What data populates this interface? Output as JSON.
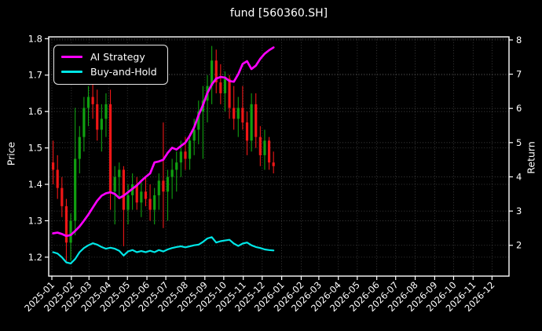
{
  "title": "fund [560360.SH]",
  "colors": {
    "background": "#000000",
    "text": "#ffffff",
    "grid": "#6e6e6e",
    "spine": "#ffffff",
    "candle_up": "#10a010",
    "candle_down": "#ef1616",
    "ai_strategy": "#ff00ff",
    "buy_and_hold": "#00e6e6"
  },
  "legend": {
    "items": [
      {
        "label": "AI Strategy",
        "color": "#ff00ff"
      },
      {
        "label": "Buy-and-Hold",
        "color": "#00e6e6"
      }
    ]
  },
  "axes": {
    "left": {
      "label": "Price",
      "ticks": [
        1.2,
        1.3,
        1.4,
        1.5,
        1.6,
        1.7,
        1.8
      ],
      "lim": [
        1.148,
        1.805
      ]
    },
    "right": {
      "label": "Return",
      "ticks": [
        2,
        3,
        4,
        5,
        6,
        7,
        8
      ],
      "lim": [
        1.1,
        8.09
      ]
    },
    "x": {
      "lim": [
        "2024-12-27",
        "2026-12-28"
      ],
      "tick_labels": [
        "2025-01",
        "2025-02",
        "2025-03",
        "2025-04",
        "2025-05",
        "2025-06",
        "2025-07",
        "2025-08",
        "2025-09",
        "2025-10",
        "2025-11",
        "2025-12",
        "2026-01",
        "2026-02",
        "2026-03",
        "2026-04",
        "2026-05",
        "2026-06",
        "2026-07",
        "2026-08",
        "2026-09",
        "2026-10",
        "2026-11",
        "2026-12"
      ]
    }
  },
  "chart_data": {
    "type": "candlestick+line",
    "title": "fund [560360.SH]",
    "xlabel": "",
    "ylabel_left": "Price",
    "ylabel_right": "Return",
    "grid": true,
    "legend_position": "upper left",
    "dates": [
      "2025-01-03",
      "2025-01-10",
      "2025-01-17",
      "2025-01-24",
      "2025-01-31",
      "2025-02-07",
      "2025-02-14",
      "2025-02-21",
      "2025-02-28",
      "2025-03-07",
      "2025-03-14",
      "2025-03-21",
      "2025-03-28",
      "2025-04-04",
      "2025-04-11",
      "2025-04-18",
      "2025-04-25",
      "2025-05-02",
      "2025-05-09",
      "2025-05-16",
      "2025-05-23",
      "2025-05-30",
      "2025-06-06",
      "2025-06-13",
      "2025-06-20",
      "2025-06-27",
      "2025-07-04",
      "2025-07-11",
      "2025-07-18",
      "2025-07-25",
      "2025-08-01",
      "2025-08-08",
      "2025-08-15",
      "2025-08-22",
      "2025-08-29",
      "2025-09-05",
      "2025-09-12",
      "2025-09-19",
      "2025-09-26",
      "2025-10-03",
      "2025-10-10",
      "2025-10-17",
      "2025-10-24",
      "2025-10-31",
      "2025-11-07",
      "2025-11-14",
      "2025-11-21",
      "2025-11-28",
      "2025-12-05",
      "2025-12-12",
      "2025-12-19"
    ],
    "candles": {
      "name": "fund price",
      "axis": "left",
      "open": [
        1.46,
        1.44,
        1.39,
        1.34,
        1.24,
        1.3,
        1.47,
        1.53,
        1.61,
        1.64,
        1.62,
        1.55,
        1.58,
        1.62,
        1.38,
        1.42,
        1.44,
        1.33,
        1.37,
        1.4,
        1.35,
        1.38,
        1.36,
        1.33,
        1.37,
        1.41,
        1.38,
        1.42,
        1.44,
        1.46,
        1.49,
        1.47,
        1.52,
        1.55,
        1.6,
        1.63,
        1.67,
        1.74,
        1.68,
        1.65,
        1.69,
        1.61,
        1.58,
        1.61,
        1.57,
        1.52,
        1.62,
        1.53,
        1.48,
        1.52,
        1.46
      ],
      "high": [
        1.52,
        1.48,
        1.42,
        1.36,
        1.32,
        1.61,
        1.56,
        1.64,
        1.67,
        1.68,
        1.66,
        1.62,
        1.65,
        1.66,
        1.45,
        1.46,
        1.45,
        1.4,
        1.43,
        1.42,
        1.41,
        1.42,
        1.4,
        1.39,
        1.43,
        1.57,
        1.44,
        1.47,
        1.49,
        1.52,
        1.53,
        1.54,
        1.58,
        1.63,
        1.67,
        1.7,
        1.78,
        1.77,
        1.73,
        1.71,
        1.7,
        1.67,
        1.64,
        1.67,
        1.6,
        1.65,
        1.65,
        1.56,
        1.55,
        1.53,
        1.49
      ],
      "low": [
        1.4,
        1.36,
        1.31,
        1.19,
        1.19,
        1.26,
        1.43,
        1.49,
        1.56,
        1.58,
        1.52,
        1.49,
        1.53,
        1.33,
        1.29,
        1.36,
        1.23,
        1.29,
        1.33,
        1.33,
        1.31,
        1.34,
        1.3,
        1.29,
        1.33,
        1.28,
        1.3,
        1.36,
        1.38,
        1.42,
        1.44,
        1.44,
        1.48,
        1.51,
        1.47,
        1.57,
        1.62,
        1.65,
        1.62,
        1.6,
        1.58,
        1.55,
        1.53,
        1.55,
        1.48,
        1.49,
        1.5,
        1.45,
        1.44,
        1.44,
        1.43
      ],
      "close": [
        1.44,
        1.39,
        1.34,
        1.24,
        1.3,
        1.47,
        1.53,
        1.61,
        1.64,
        1.62,
        1.55,
        1.58,
        1.62,
        1.38,
        1.42,
        1.44,
        1.33,
        1.37,
        1.4,
        1.35,
        1.38,
        1.36,
        1.33,
        1.37,
        1.41,
        1.38,
        1.42,
        1.44,
        1.46,
        1.49,
        1.47,
        1.52,
        1.55,
        1.6,
        1.63,
        1.67,
        1.74,
        1.68,
        1.65,
        1.69,
        1.61,
        1.58,
        1.61,
        1.57,
        1.52,
        1.62,
        1.53,
        1.48,
        1.52,
        1.46,
        1.45
      ]
    },
    "series": [
      {
        "name": "AI Strategy",
        "axis": "right",
        "color": "#ff00ff",
        "values": [
          2.35,
          2.37,
          2.33,
          2.27,
          2.3,
          2.42,
          2.55,
          2.72,
          2.9,
          3.1,
          3.3,
          3.45,
          3.52,
          3.55,
          3.5,
          3.38,
          3.45,
          3.55,
          3.65,
          3.75,
          3.88,
          4.0,
          4.1,
          4.42,
          4.45,
          4.5,
          4.7,
          4.85,
          4.8,
          4.9,
          5.0,
          5.2,
          5.45,
          5.8,
          6.1,
          6.45,
          6.7,
          6.87,
          6.92,
          6.9,
          6.8,
          6.78,
          7.0,
          7.3,
          7.38,
          7.15,
          7.25,
          7.45,
          7.6,
          7.7,
          7.78
        ]
      },
      {
        "name": "Buy-and-Hold",
        "axis": "right",
        "color": "#00e6e6",
        "values": [
          1.8,
          1.76,
          1.65,
          1.5,
          1.47,
          1.6,
          1.8,
          1.92,
          2.0,
          2.06,
          2.02,
          1.95,
          1.9,
          1.93,
          1.9,
          1.84,
          1.7,
          1.82,
          1.86,
          1.8,
          1.83,
          1.8,
          1.84,
          1.8,
          1.86,
          1.82,
          1.88,
          1.92,
          1.95,
          1.97,
          1.94,
          1.97,
          2.0,
          2.02,
          2.1,
          2.2,
          2.24,
          2.08,
          2.12,
          2.14,
          2.16,
          2.05,
          1.98,
          2.05,
          2.08,
          2.0,
          1.95,
          1.92,
          1.88,
          1.86,
          1.85
        ]
      }
    ]
  }
}
